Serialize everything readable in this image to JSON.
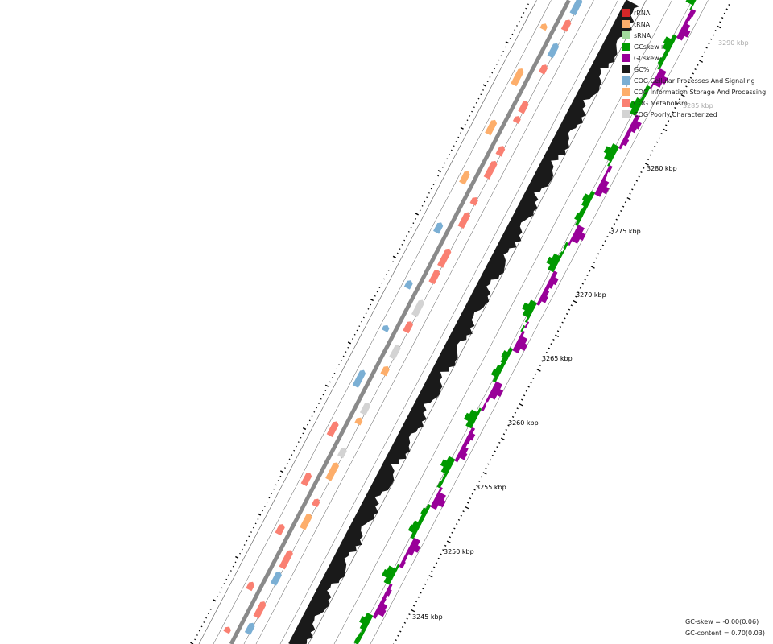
{
  "legend": [
    {
      "label": "rRNA",
      "color": "#d62728"
    },
    {
      "label": "tRNA",
      "color": "#fdae6b"
    },
    {
      "label": "sRNA",
      "color": "#a1d99b"
    },
    {
      "label": "GCskew+",
      "color": "#009900"
    },
    {
      "label": "GCskew-",
      "color": "#990099"
    },
    {
      "label": "GC%",
      "color": "#1a1a1a"
    },
    {
      "label": "COG Cellular Processes And Signaling",
      "color": "#7bafd4"
    },
    {
      "label": "COG Information Storage And Processing",
      "color": "#fdae6b"
    },
    {
      "label": "COG Metabolism",
      "color": "#fa8072"
    },
    {
      "label": "COG Poorly Characterized",
      "color": "#d3d3d3"
    }
  ],
  "tick_labels": [
    "3245 kbp",
    "3250 kbp",
    "3255 kbp",
    "3260 kbp",
    "3265 kbp",
    "3270 kbp",
    "3275 kbp",
    "3280 kbp",
    "3285 kbp",
    "3290 kbp"
  ],
  "stats": {
    "gc_skew": "GC-skew = -0.00(0.06)",
    "gc_content": "GC-content = 0.70(0.03)"
  }
}
